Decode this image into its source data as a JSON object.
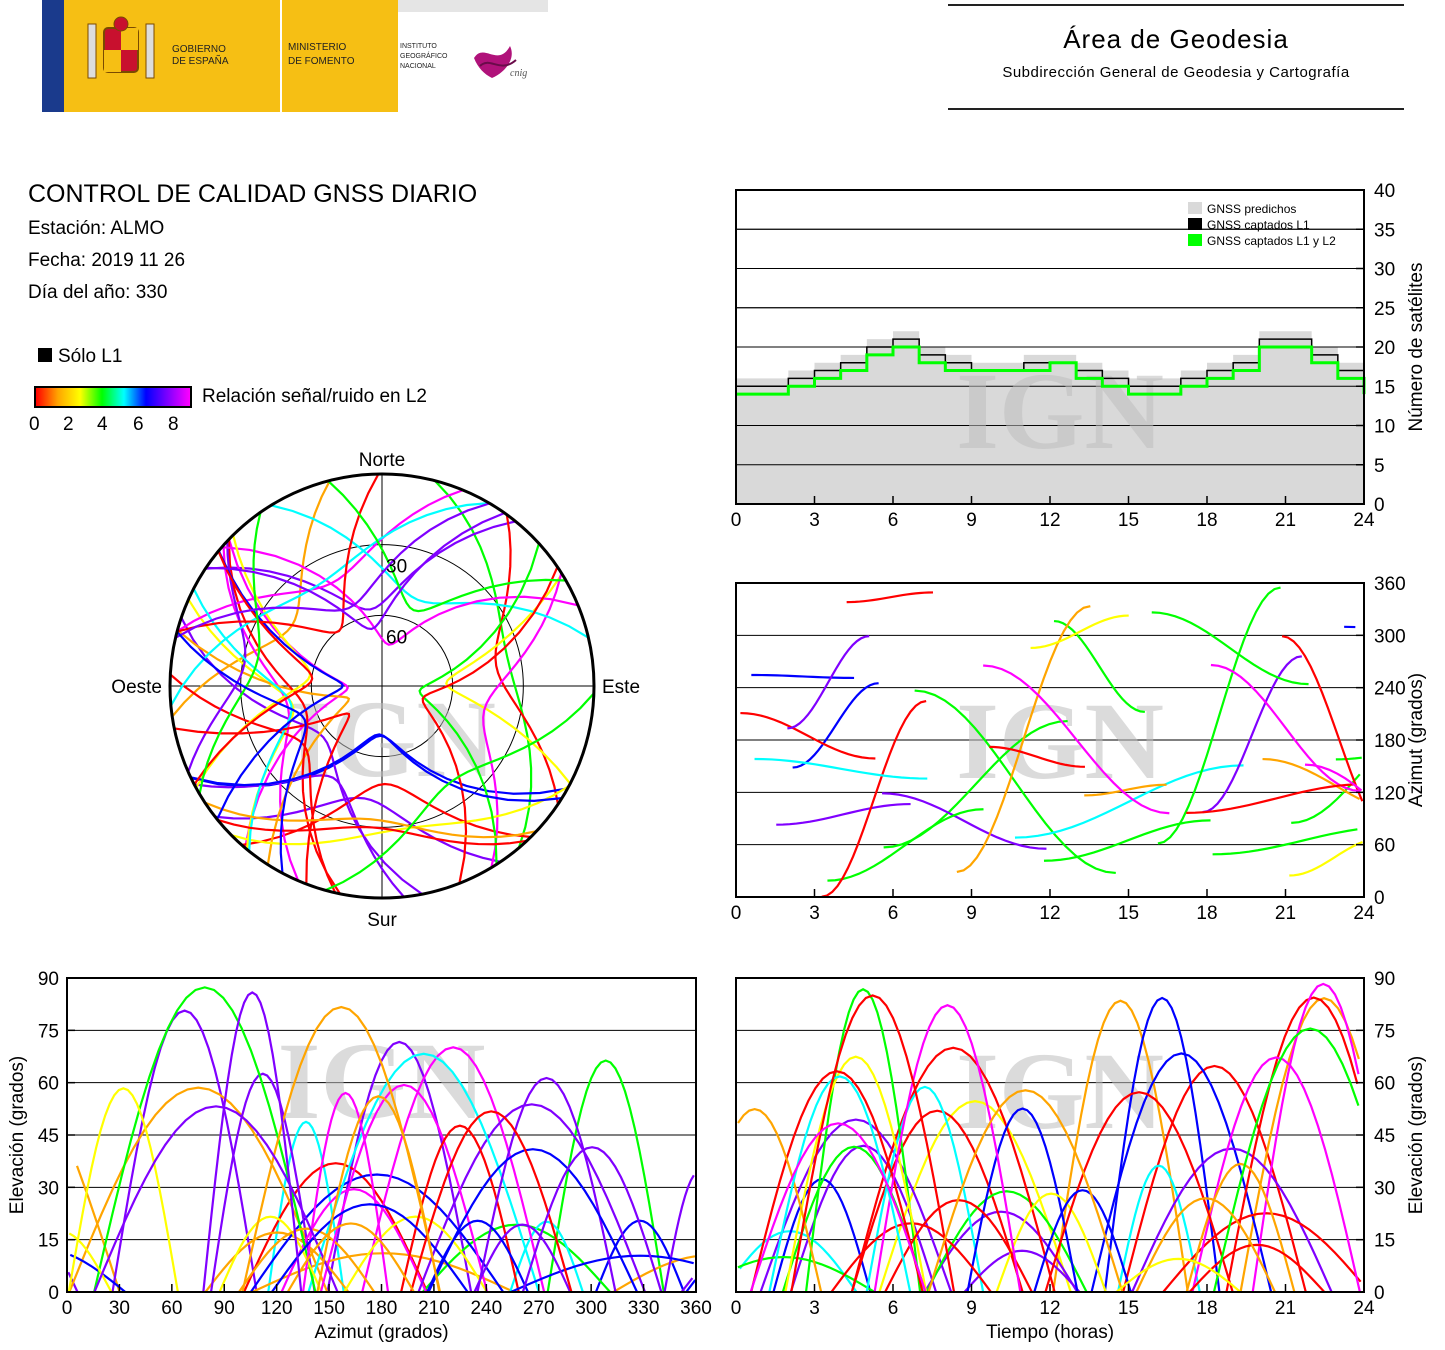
{
  "header": {
    "gov_line1": "GOBIERNO",
    "gov_line2": "DE ESPAÑA",
    "min_line1": "MINISTERIO",
    "min_line2": "DE FOMENTO",
    "inst_line1": "INSTITUTO",
    "inst_line2": "GEOGRÁFICO",
    "inst_line3": "NACIONAL",
    "cnig": "cnig",
    "area_title": "Área de Geodesia",
    "area_subtitle": "Subdirección General de Geodesia y Cartografía"
  },
  "info": {
    "title": "CONTROL DE CALIDAD GNSS DIARIO",
    "station": "Estación: ALMO",
    "date": "Fecha: 2019 11 26",
    "doy": "Día del año: 330"
  },
  "legend": {
    "l1_only": "Sólo L1",
    "snr_label": "Relación señal/ruido en L2",
    "scale_ticks": [
      "0",
      "2",
      "4",
      "6",
      "8"
    ],
    "scale_colors": [
      "#ff0000",
      "#ffa500",
      "#ffff00",
      "#00ff00",
      "#00ffff",
      "#0000ff",
      "#8000ff",
      "#ff00ff"
    ]
  },
  "watermark": "IGN",
  "colors": {
    "predicted": "#d9d9d9",
    "l1": "#000000",
    "l1l2": "#00ff00"
  },
  "chart_data": [
    {
      "type": "area",
      "x": [
        0,
        1,
        2,
        3,
        4,
        5,
        6,
        7,
        8,
        9,
        10,
        11,
        12,
        13,
        14,
        15,
        16,
        17,
        18,
        19,
        20,
        21,
        22,
        23,
        24
      ],
      "series": [
        {
          "name": "GNSS predichos",
          "values": [
            16,
            16,
            17,
            18,
            19,
            21,
            22,
            20,
            19,
            18,
            18,
            19,
            19,
            18,
            17,
            16,
            16,
            17,
            18,
            19,
            22,
            22,
            20,
            18,
            16
          ]
        },
        {
          "name": "GNSS captados L1",
          "values": [
            15,
            15,
            16,
            17,
            18,
            20,
            21,
            19,
            18,
            17,
            17,
            18,
            18,
            17,
            16,
            15,
            15,
            16,
            17,
            18,
            21,
            21,
            19,
            17,
            15
          ]
        },
        {
          "name": "GNSS captados L1 y L2",
          "values": [
            14,
            14,
            15,
            16,
            17,
            19,
            20,
            18,
            17,
            17,
            17,
            17,
            18,
            16,
            15,
            14,
            14,
            15,
            16,
            17,
            20,
            20,
            18,
            16,
            14
          ]
        }
      ],
      "xlim": [
        0,
        24
      ],
      "ylim": [
        0,
        40
      ],
      "xticks": [
        "0",
        "3",
        "6",
        "9",
        "12",
        "15",
        "18",
        "21",
        "24"
      ],
      "yticks": [
        "0",
        "5",
        "10",
        "15",
        "20",
        "25",
        "30",
        "35",
        "40"
      ],
      "ylabel": "Número de satélites",
      "legend_position": "top-right"
    },
    {
      "type": "scatter",
      "xlim": [
        0,
        24
      ],
      "ylim": [
        0,
        360
      ],
      "xticks": [
        "0",
        "3",
        "6",
        "9",
        "12",
        "15",
        "18",
        "21",
        "24"
      ],
      "yticks": [
        "0",
        "60",
        "120",
        "180",
        "240",
        "300",
        "360"
      ],
      "ylabel": "Azimut (grados)"
    },
    {
      "type": "scatter",
      "subtype": "polar",
      "directions": {
        "north": "Norte",
        "south": "Sur",
        "east": "Este",
        "west": "Oeste"
      },
      "ring_labels": [
        "30",
        "60"
      ]
    },
    {
      "type": "scatter",
      "xlim": [
        0,
        360
      ],
      "ylim": [
        0,
        90
      ],
      "xticks": [
        "0",
        "30",
        "60",
        "90",
        "120",
        "150",
        "180",
        "210",
        "240",
        "270",
        "300",
        "330",
        "360"
      ],
      "yticks": [
        "0",
        "15",
        "30",
        "45",
        "60",
        "75",
        "90"
      ],
      "xlabel": "Azimut (grados)",
      "ylabel": "Elevación (grados)"
    },
    {
      "type": "scatter",
      "xlim": [
        0,
        24
      ],
      "ylim": [
        0,
        90
      ],
      "xticks": [
        "0",
        "3",
        "6",
        "9",
        "12",
        "15",
        "18",
        "21",
        "24"
      ],
      "yticks": [
        "0",
        "15",
        "30",
        "45",
        "60",
        "75",
        "90"
      ],
      "xlabel": "Tiempo (horas)",
      "ylabel": "Elevación (grados)"
    }
  ]
}
